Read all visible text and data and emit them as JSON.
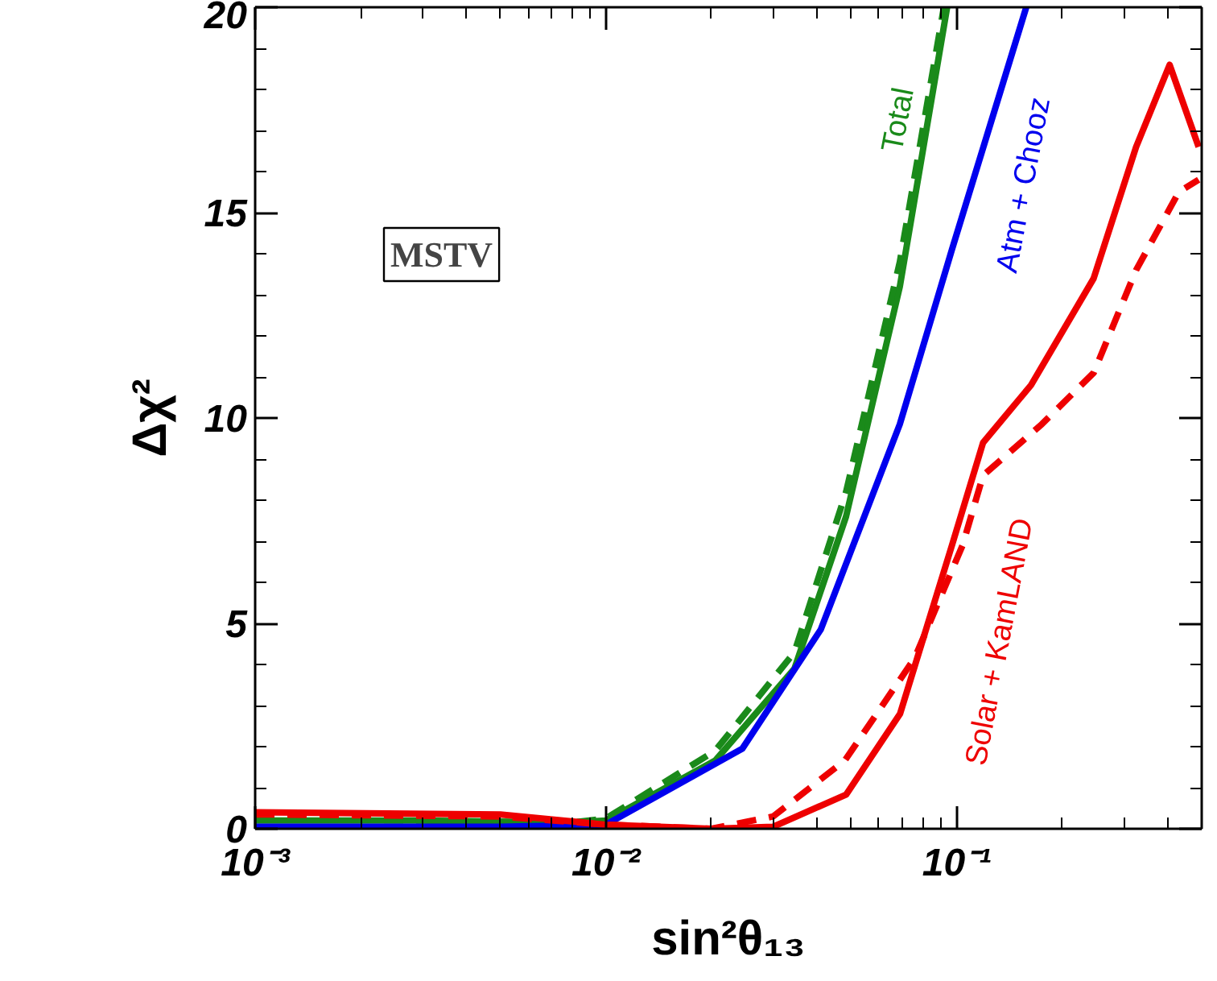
{
  "chart_data": {
    "type": "line",
    "xlabel": "sin²θ₁₃",
    "ylabel": "Δχ²",
    "log": "x",
    "grid": false,
    "legend": false,
    "xlim": [
      0.001,
      0.5
    ],
    "ylim": [
      0,
      20
    ],
    "xticks": [
      {
        "value": 0.001,
        "label": "10⁻³"
      },
      {
        "value": 0.01,
        "label": "10⁻²"
      },
      {
        "value": 0.1,
        "label": "10⁻¹"
      }
    ],
    "yticks": [
      0,
      5,
      10,
      15,
      20
    ],
    "series": [
      {
        "name": "Total",
        "color": "#1a8a1a",
        "line_style": "solid",
        "x": [
          0.001,
          0.003,
          0.008,
          0.01,
          0.0205,
          0.0345,
          0.0484,
          0.0689,
          0.094
        ],
        "values": [
          0.2,
          0.2,
          0.15,
          0.2,
          1.66,
          3.9,
          7.6,
          13.2,
          20
        ]
      },
      {
        "color": "#1a8a1a",
        "line_style": "dashed",
        "x": [
          0.001,
          0.003,
          0.008,
          0.01,
          0.0205,
          0.0345,
          0.0484,
          0.0689,
          0.092
        ],
        "values": [
          0.25,
          0.2,
          0.15,
          0.25,
          1.9,
          4.3,
          8.2,
          13.8,
          20
        ]
      },
      {
        "name": "Atm + Chooz",
        "color": "#0000ee",
        "line_style": "solid",
        "x": [
          0.001,
          0.005,
          0.01,
          0.0245,
          0.041,
          0.0689,
          0.097,
          0.158
        ],
        "values": [
          0.05,
          0.05,
          0.1,
          1.95,
          4.85,
          9.85,
          14.1,
          20
        ]
      },
      {
        "name": "Solar + KamLAND",
        "color": "#ee0000",
        "line_style": "solid",
        "x": [
          0.001,
          0.005,
          0.01,
          0.02,
          0.03,
          0.0484,
          0.069,
          0.097,
          0.119,
          0.163,
          0.246,
          0.325,
          0.405,
          0.49
        ],
        "values": [
          0.4,
          0.35,
          0.1,
          0.0,
          0.05,
          0.83,
          2.8,
          6.9,
          9.4,
          10.8,
          13.4,
          16.6,
          18.6,
          16.6
        ]
      },
      {
        "color": "#ee0000",
        "line_style": "dashed",
        "x": [
          0.001,
          0.005,
          0.01,
          0.02,
          0.03,
          0.048,
          0.076,
          0.104,
          0.119,
          0.175,
          0.246,
          0.325,
          0.43,
          0.49
        ],
        "values": [
          0.35,
          0.3,
          0.1,
          0.0,
          0.3,
          1.66,
          4.16,
          6.9,
          8.6,
          9.85,
          11.1,
          13.6,
          15.5,
          15.8
        ]
      }
    ],
    "annotations": [
      "MSTV"
    ]
  }
}
